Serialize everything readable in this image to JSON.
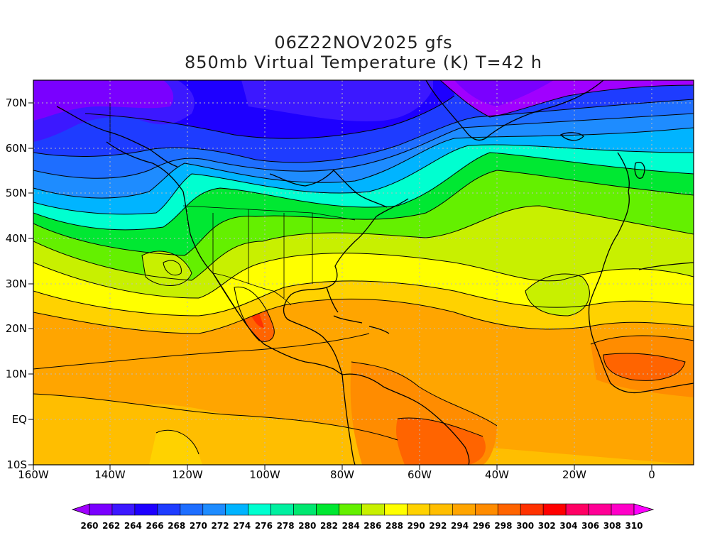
{
  "title_line1": "06Z22NOV2025 gfs",
  "title_line2": "850mb Virtual Temperature (K) T=42 h",
  "lat_labels": [
    "70N",
    "60N",
    "50N",
    "40N",
    "30N",
    "20N",
    "10N",
    "EQ",
    "10S"
  ],
  "lon_labels": [
    "160W",
    "140W",
    "120W",
    "100W",
    "80W",
    "60W",
    "40W",
    "20W",
    "0"
  ],
  "colorbar": {
    "values": [
      "260",
      "262",
      "264",
      "266",
      "268",
      "270",
      "272",
      "274",
      "276",
      "278",
      "280",
      "282",
      "284",
      "286",
      "288",
      "290",
      "292",
      "294",
      "296",
      "298",
      "300",
      "302",
      "304",
      "306",
      "308",
      "310"
    ],
    "colors": [
      "#a000ff",
      "#7a00ff",
      "#3c18ff",
      "#1e00ff",
      "#1e3cff",
      "#1e6eff",
      "#1e8cff",
      "#00b4ff",
      "#00ffd0",
      "#00f0a0",
      "#00e870",
      "#00e832",
      "#64f000",
      "#c8f000",
      "#ffff00",
      "#ffd200",
      "#ffbe00",
      "#ffa500",
      "#ff8c00",
      "#ff6400",
      "#ff3200",
      "#ff0000",
      "#ff0064",
      "#ff0096",
      "#ff00c8",
      "#ff00ff"
    ]
  },
  "map_colors": {
    "ocean_base": "#ffa500",
    "ocean_warm": "#ff8c00",
    "land_hot": "#ff6400",
    "land_hotter": "#ff3200",
    "contour": "#000000",
    "grid": "#bbbbbb"
  }
}
